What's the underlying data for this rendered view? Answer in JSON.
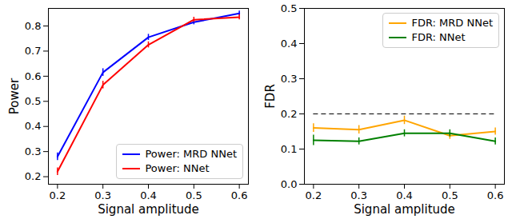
{
  "chart_data": [
    {
      "type": "line",
      "xlabel": "Signal amplitude",
      "ylabel": "Power",
      "x": [
        0.2,
        0.3,
        0.4,
        0.5,
        0.6
      ],
      "xlim": [
        0.18,
        0.62
      ],
      "xticks": [
        0.2,
        0.3,
        0.4,
        0.5,
        0.6
      ],
      "ylim": [
        0.17,
        0.87
      ],
      "yticks": [
        0.2,
        0.3,
        0.4,
        0.5,
        0.6,
        0.7,
        0.8
      ],
      "legend": "lower right",
      "series": [
        {
          "name": "Power: MRD NNet",
          "color": "#0000ff",
          "values": [
            0.28,
            0.615,
            0.755,
            0.815,
            0.85
          ],
          "errors": [
            0.015,
            0.015,
            0.012,
            0.01,
            0.01
          ]
        },
        {
          "name": "Power: NNet",
          "color": "#ff0000",
          "values": [
            0.22,
            0.565,
            0.725,
            0.825,
            0.835
          ],
          "errors": [
            0.015,
            0.015,
            0.012,
            0.01,
            0.01
          ]
        }
      ]
    },
    {
      "type": "line",
      "xlabel": "Signal amplitude",
      "ylabel": "FDR",
      "x": [
        0.2,
        0.3,
        0.4,
        0.5,
        0.6
      ],
      "xlim": [
        0.18,
        0.62
      ],
      "xticks": [
        0.2,
        0.3,
        0.4,
        0.5,
        0.6
      ],
      "ylim": [
        0,
        0.5
      ],
      "yticks": [
        {
          "value": 0,
          "label": "0.0"
        },
        0.1,
        0.2,
        0.3,
        0.4,
        0.5
      ],
      "legend": "upper right",
      "hline": {
        "y": 0.2,
        "color": "#000000",
        "line_style": "dashed"
      },
      "series": [
        {
          "name": "FDR: MRD NNet",
          "color": "#ffa500",
          "values": [
            0.16,
            0.155,
            0.182,
            0.138,
            0.15
          ],
          "errors": [
            0.012,
            0.012,
            0.012,
            0.01,
            0.01
          ]
        },
        {
          "name": "FDR: NNet",
          "color": "#008000",
          "values": [
            0.125,
            0.122,
            0.145,
            0.145,
            0.122
          ],
          "errors": [
            0.015,
            0.01,
            0.01,
            0.01,
            0.01
          ]
        }
      ]
    }
  ]
}
